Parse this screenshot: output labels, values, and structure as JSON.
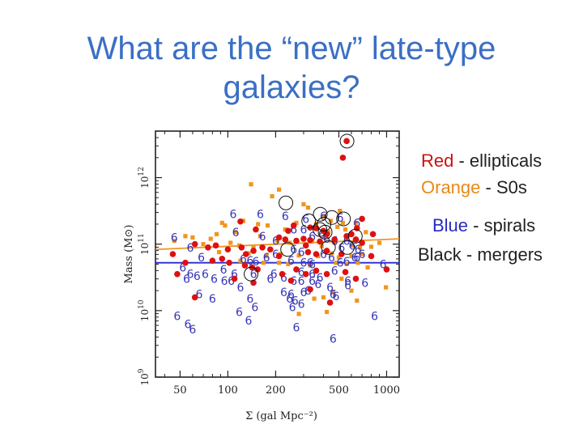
{
  "slide": {
    "title_line1": "What are the “new” late-type",
    "title_line2": "galaxies?"
  },
  "legend": [
    {
      "name": "Red",
      "sep": " - ",
      "desc": "ellipticals",
      "color": "#cc1111"
    },
    {
      "name": "Orange",
      "sep": " - ",
      "desc": "S0s",
      "color": "#e8891a"
    },
    {
      "name": "Blue",
      "sep": " - ",
      "desc": "spirals",
      "color": "#2a2abf"
    },
    {
      "name": "Black",
      "sep": " - ",
      "desc": "mergers",
      "color": "#222222"
    }
  ],
  "chart_data": {
    "type": "scatter",
    "title": "",
    "xlabel": "Σ (gal Mpc⁻²)",
    "ylabel": "Mass (M⊙)",
    "xscale": "log",
    "yscale": "log",
    "xlim": [
      35,
      1200
    ],
    "ylim_log10": [
      9.0,
      12.7
    ],
    "xticks": [
      {
        "value": 50,
        "label": "50"
      },
      {
        "value": 100,
        "label": "100"
      },
      {
        "value": 200,
        "label": "200"
      },
      {
        "value": 500,
        "label": "500"
      },
      {
        "value": 1000,
        "label": "1000"
      }
    ],
    "yticks": [
      {
        "log10": 9,
        "base": "10",
        "exp": "9"
      },
      {
        "log10": 10,
        "base": "10",
        "exp": "10"
      },
      {
        "log10": 11,
        "base": "10",
        "exp": "11"
      },
      {
        "log10": 12,
        "base": "10",
        "exp": "12"
      }
    ],
    "spiral_glyph": "6",
    "colors": {
      "ellipticals": "#dd1111",
      "s0s": "#f0961e",
      "spirals": "#3535b8",
      "mergers": "#111111",
      "axis": "#222222"
    },
    "median_lines": [
      {
        "name": "S0s",
        "color": "#f0961e",
        "y_log10": [
          10.92,
          11.08
        ]
      },
      {
        "name": "spirals",
        "color": "#2a2ad0",
        "y_log10": [
          10.72,
          10.72
        ]
      }
    ],
    "series": [
      {
        "name": "Ellipticals",
        "kind": "ellipticals",
        "x": [
          560,
          530,
          120,
          260,
          240,
          330,
          360,
          150,
          400,
          420,
          700,
          820,
          650,
          210,
          230,
          270,
          300,
          310,
          330,
          380,
          470,
          560,
          600,
          640,
          700,
          62,
          75,
          84,
          100,
          122,
          130,
          145,
          165,
          185,
          210,
          320,
          360,
          420,
          520,
          800,
          54,
          80,
          92,
          102,
          128,
          142,
          154,
          220,
          270,
          310,
          360,
          420,
          550,
          640,
          110,
          145,
          62,
          330,
          440,
          250,
          48,
          45,
          1000
        ],
        "y": [
          12.55,
          12.3,
          11.34,
          11.28,
          11.2,
          11.25,
          11.24,
          11.22,
          11.2,
          11.15,
          11.38,
          11.15,
          11.24,
          11.1,
          11.07,
          11.05,
          11.08,
          10.98,
          11.06,
          11.04,
          11.07,
          11.12,
          11.15,
          11.07,
          11.02,
          11.0,
          10.95,
          10.98,
          10.92,
          10.95,
          10.85,
          10.9,
          10.95,
          10.92,
          10.82,
          10.88,
          10.85,
          10.9,
          10.85,
          10.82,
          10.72,
          10.75,
          10.78,
          10.72,
          10.68,
          10.65,
          10.62,
          10.55,
          10.62,
          10.55,
          10.6,
          10.55,
          10.58,
          10.48,
          10.48,
          10.42,
          10.2,
          10.32,
          10.12,
          10.45,
          10.55,
          10.85,
          10.62
        ]
      },
      {
        "name": "S0s",
        "kind": "s0s",
        "x": [
          140,
          210,
          300,
          190,
          320,
          405,
          445,
          508,
          92,
          96,
          125,
          155,
          178,
          270,
          360,
          490,
          530,
          640,
          60,
          85,
          112,
          160,
          230,
          430,
          550,
          740,
          46,
          54,
          70,
          78,
          104,
          118,
          145,
          205,
          245,
          340,
          390,
          470,
          600,
          680,
          800,
          900,
          88,
          135,
          175,
          215,
          280,
          370,
          450,
          500,
          600,
          700,
          120,
          168,
          210,
          240,
          330,
          480,
          560,
          660,
          760,
          400,
          460,
          350,
          280,
          420,
          600,
          650,
          990,
          520
        ],
        "y": [
          11.9,
          11.82,
          11.6,
          11.72,
          11.55,
          11.42,
          11.35,
          11.5,
          11.32,
          11.28,
          11.35,
          11.3,
          11.28,
          11.32,
          11.3,
          11.26,
          11.32,
          11.32,
          11.1,
          11.15,
          11.18,
          11.12,
          11.22,
          11.18,
          11.22,
          11.18,
          11.05,
          11.12,
          11.0,
          11.08,
          11.02,
          10.98,
          10.95,
          11.05,
          11.02,
          11.04,
          10.97,
          11.02,
          10.98,
          10.95,
          10.96,
          11.02,
          10.88,
          10.86,
          10.82,
          10.85,
          10.83,
          10.82,
          10.86,
          10.8,
          10.82,
          10.85,
          10.75,
          10.72,
          10.72,
          10.7,
          10.68,
          10.72,
          10.7,
          10.72,
          10.65,
          10.2,
          10.28,
          10.18,
          9.95,
          9.98,
          10.3,
          10.15,
          10.35,
          10.48
        ]
      },
      {
        "name": "Spirals",
        "kind": "spirals",
        "x": [
          108,
          160,
          230,
          310,
          400,
          510,
          650,
          46,
          58,
          112,
          165,
          200,
          260,
          300,
          340,
          390,
          420,
          470,
          520,
          560,
          610,
          660,
          650,
          260,
          290,
          400,
          450,
          330,
          700,
          68,
          125,
          138,
          150,
          175,
          200,
          250,
          300,
          340,
          510,
          560,
          630,
          950,
          52,
          58,
          72,
          94,
          110,
          145,
          195,
          290,
          340,
          380,
          470,
          55,
          64,
          82,
          95,
          105,
          185,
          225,
          260,
          290,
          340,
          370,
          570,
          730,
          66,
          250,
          300,
          320,
          440,
          570,
          80,
          138,
          148,
          255,
          290,
          460,
          48,
          56,
          60,
          120,
          225,
          245,
          265,
          270,
          840,
          118,
          135,
          480,
          460
        ],
        "y": [
          11.45,
          11.45,
          11.42,
          11.38,
          11.42,
          11.4,
          11.32,
          11.1,
          10.95,
          11.18,
          11.12,
          11.05,
          11.22,
          11.22,
          11.12,
          11.15,
          11.08,
          11.05,
          10.95,
          11.05,
          10.98,
          10.92,
          10.8,
          10.92,
          10.88,
          10.85,
          10.8,
          10.72,
          10.85,
          10.8,
          10.78,
          10.75,
          10.74,
          10.8,
          10.85,
          10.75,
          10.72,
          10.7,
          10.72,
          10.74,
          10.8,
          10.7,
          10.65,
          10.55,
          10.55,
          10.62,
          10.55,
          10.55,
          10.55,
          10.58,
          10.55,
          10.5,
          10.6,
          10.48,
          10.52,
          10.48,
          10.45,
          10.45,
          10.48,
          10.5,
          10.45,
          10.45,
          10.45,
          10.4,
          10.45,
          10.42,
          10.25,
          10.25,
          10.28,
          10.3,
          10.35,
          10.38,
          10.18,
          10.18,
          10.05,
          10.05,
          10.1,
          10.25,
          9.92,
          9.8,
          9.72,
          10.35,
          10.28,
          10.18,
          10.15,
          9.75,
          9.92,
          9.98,
          9.85,
          10.22,
          9.58
        ]
      },
      {
        "name": "Mergers",
        "kind": "mergers",
        "x": [
          563,
          232,
          323,
          382,
          403,
          452,
          535,
          380,
          410,
          635,
          430,
          565,
          140,
          238
        ],
        "y": [
          12.55,
          11.62,
          11.35,
          11.45,
          11.3,
          11.4,
          11.38,
          11.22,
          11.18,
          11.12,
          10.95,
          10.95,
          10.55,
          10.92
        ]
      }
    ]
  }
}
